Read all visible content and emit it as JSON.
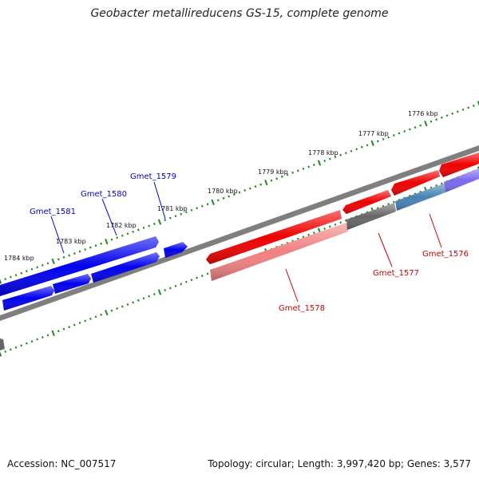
{
  "title": "Geobacter metallireducens GS-15, complete genome",
  "accession": "Accession: NC_007517",
  "summary": "Topology: circular; Length: 3,997,420 bp; Genes: 3,577",
  "colors": {
    "forward": "#0000ee",
    "reverse_red": "#ee0000",
    "reverse_pink": "#f08080",
    "gray": "#666666",
    "steelblue": "#4682b4",
    "slateblue": "#7b68ee",
    "backbone": "#808080",
    "ticks": "#1a8a1a"
  },
  "kbp_labels": [
    "1776 kbp",
    "1777 kbp",
    "1778 kbp",
    "1779 kbp",
    "1780 kbp",
    "1781 kbp",
    "1782 kbp",
    "1783 kbp",
    "1784 kbp"
  ],
  "genes": [
    {
      "label": "Gmet_1576",
      "color": "#cc0000"
    },
    {
      "label": "Gmet_1577",
      "color": "#cc0000"
    },
    {
      "label": "Gmet_1578",
      "color": "#cc0000"
    },
    {
      "label": "Gmet_1579",
      "color": "#0000cc"
    },
    {
      "label": "Gmet_1580",
      "color": "#0000cc"
    },
    {
      "label": "Gmet_1581",
      "color": "#0000cc"
    }
  ]
}
